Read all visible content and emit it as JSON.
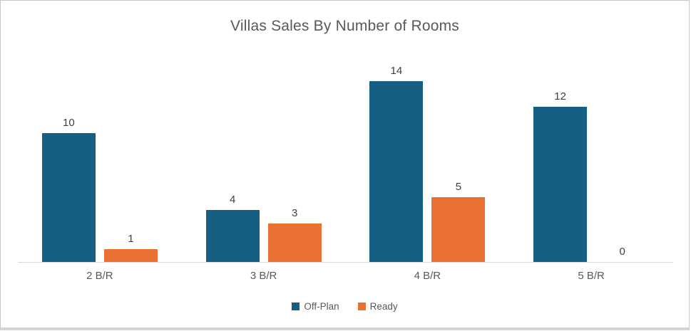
{
  "chart_data": {
    "type": "bar",
    "title": "Villas Sales By Number of Rooms",
    "categories": [
      "2 B/R",
      "3 B/R",
      "4 B/R",
      "5 B/R"
    ],
    "series": [
      {
        "name": "Off-Plan",
        "color": "#156082",
        "values": [
          10,
          4,
          14,
          12
        ]
      },
      {
        "name": "Ready",
        "color": "#E97132",
        "values": [
          1,
          3,
          5,
          0
        ]
      }
    ],
    "xlabel": "",
    "ylabel": "",
    "ylim": [
      0,
      14
    ],
    "grid": false,
    "data_labels": true,
    "legend_position": "bottom",
    "title_color": "#595959",
    "data_label_color": "#404040",
    "category_label_color": "#595959",
    "legend_text_color": "#595959",
    "axis_line_color": "#d9d9d9",
    "frame_border_color": "#c8c8c8",
    "background_color": "#ffffff"
  }
}
